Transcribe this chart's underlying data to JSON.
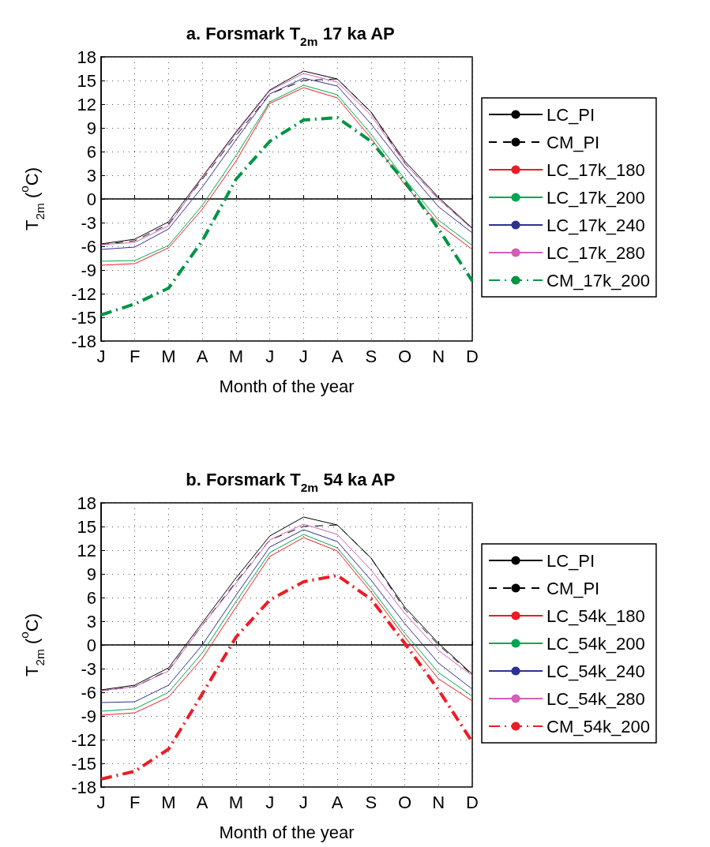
{
  "chart_data": [
    {
      "type": "line",
      "title": "a. Forsmark T$_{2m}$ 17 ka AP",
      "xlabel": "Month of the year",
      "ylabel": "T$_{2m}$ ($^{o}$C)",
      "categories": [
        "J",
        "F",
        "M",
        "A",
        "M",
        "J",
        "J",
        "A",
        "S",
        "O",
        "N",
        "D"
      ],
      "ylim": [
        -18,
        18
      ],
      "yticks": [
        -18,
        -15,
        -12,
        -9,
        -6,
        -3,
        0,
        3,
        6,
        9,
        12,
        15,
        18
      ],
      "grid": true,
      "legend": "right",
      "marker": "none",
      "series": [
        {
          "name": "LC_PI",
          "color": "#000000",
          "line_style": "solid",
          "values": [
            -5.7,
            -5.1,
            -2.9,
            2.8,
            8.5,
            13.8,
            16.2,
            15.2,
            11.0,
            4.8,
            0.2,
            -3.7
          ]
        },
        {
          "name": "CM_PI",
          "color": "#000000",
          "line_style": "dashed",
          "values": [
            -5.8,
            -5.3,
            -3.2,
            2.5,
            8.0,
            13.3,
            15.0,
            15.2,
            11.0,
            4.5,
            0.0,
            -3.8
          ]
        },
        {
          "name": "LC_17k_180",
          "color": "#ed1c24",
          "line_style": "solid",
          "values": [
            -8.4,
            -8.2,
            -6.2,
            -1.3,
            4.8,
            12.1,
            14.1,
            12.8,
            7.7,
            1.8,
            -3.2,
            -6.4
          ]
        },
        {
          "name": "LC_17k_200",
          "color": "#00a651",
          "line_style": "solid",
          "values": [
            -7.9,
            -7.8,
            -5.9,
            -0.8,
            5.5,
            12.3,
            14.4,
            13.2,
            8.2,
            2.5,
            -2.7,
            -5.9
          ]
        },
        {
          "name": "LC_17k_240",
          "color": "#2e3192",
          "line_style": "solid",
          "values": [
            -6.4,
            -6.1,
            -3.8,
            1.5,
            7.5,
            13.3,
            15.3,
            14.3,
            9.5,
            4.0,
            -1.0,
            -4.3
          ]
        },
        {
          "name": "LC_17k_280",
          "color": "#d35fb7",
          "line_style": "solid",
          "values": [
            -5.8,
            -5.5,
            -3.4,
            2.7,
            8.3,
            13.7,
            15.9,
            14.8,
            10.6,
            4.5,
            0.0,
            -3.8
          ]
        },
        {
          "name": "CM_17k_200",
          "color": "#009444",
          "line_style": "dashdot",
          "values": [
            -14.7,
            -13.3,
            -11.3,
            -5.3,
            2.5,
            7.3,
            10.0,
            10.3,
            7.3,
            2.2,
            -3.8,
            -10.4
          ]
        }
      ]
    },
    {
      "type": "line",
      "title": "b. Forsmark T$_{2m}$ 54 ka AP",
      "xlabel": "Month of the year",
      "ylabel": "T$_{2m}$ ($^{o}$C)",
      "categories": [
        "J",
        "F",
        "M",
        "A",
        "M",
        "J",
        "J",
        "A",
        "S",
        "O",
        "N",
        "D"
      ],
      "ylim": [
        -18,
        18
      ],
      "yticks": [
        -18,
        -15,
        -12,
        -9,
        -6,
        -3,
        0,
        3,
        6,
        9,
        12,
        15,
        18
      ],
      "grid": true,
      "legend": "right",
      "marker": "none",
      "series": [
        {
          "name": "LC_PI",
          "color": "#000000",
          "line_style": "solid",
          "values": [
            -5.7,
            -5.1,
            -2.9,
            2.8,
            8.5,
            13.8,
            16.2,
            15.2,
            11.0,
            4.8,
            0.2,
            -3.7
          ]
        },
        {
          "name": "CM_PI",
          "color": "#000000",
          "line_style": "dashed",
          "values": [
            -5.8,
            -5.3,
            -3.2,
            2.5,
            8.0,
            13.3,
            15.0,
            15.2,
            11.0,
            4.5,
            0.0,
            -3.8
          ]
        },
        {
          "name": "LC_54k_180",
          "color": "#ed1c24",
          "line_style": "solid",
          "values": [
            -8.9,
            -8.6,
            -6.6,
            -1.7,
            4.8,
            11.2,
            13.6,
            11.9,
            6.7,
            1.0,
            -4.3,
            -7.1
          ]
        },
        {
          "name": "LC_54k_200",
          "color": "#00a651",
          "line_style": "solid",
          "values": [
            -8.4,
            -8.1,
            -6.0,
            -1.0,
            5.5,
            11.7,
            14.0,
            12.3,
            7.2,
            1.5,
            -3.5,
            -6.5
          ]
        },
        {
          "name": "LC_54k_240",
          "color": "#2e3192",
          "line_style": "solid",
          "values": [
            -7.3,
            -7.2,
            -5.1,
            0.0,
            6.3,
            12.4,
            14.6,
            13.1,
            8.2,
            2.7,
            -2.3,
            -5.6
          ]
        },
        {
          "name": "LC_54k_280",
          "color": "#d35fb7",
          "line_style": "solid",
          "values": [
            -5.8,
            -5.3,
            -3.3,
            2.5,
            7.8,
            13.3,
            15.3,
            14.0,
            9.5,
            4.0,
            -0.7,
            -3.9
          ]
        },
        {
          "name": "CM_54k_200",
          "color": "#ed1c24",
          "line_style": "dashdot",
          "values": [
            -17.0,
            -16.0,
            -13.2,
            -6.2,
            1.0,
            5.7,
            8.0,
            8.8,
            5.8,
            0.2,
            -5.7,
            -12.3
          ]
        }
      ]
    }
  ]
}
